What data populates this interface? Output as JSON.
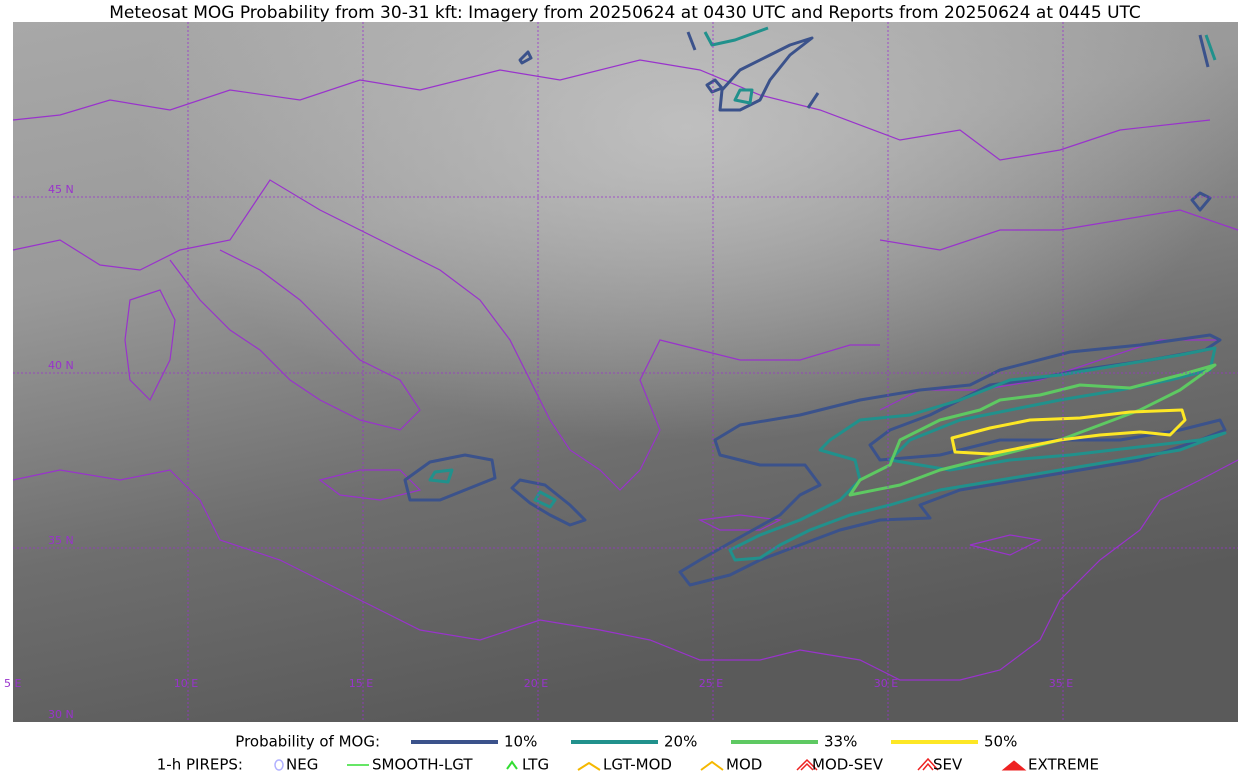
{
  "title": "Meteosat MOG Probability from 30-31 kft: Imagery from 20250624 at 0430 UTC and Reports from 20250624 at 0445 UTC",
  "map": {
    "lat_labels": [
      "45 N",
      "40 N",
      "35 N",
      "30 N"
    ],
    "lon_labels": [
      "5 E",
      "10 E",
      "15 E",
      "20 E",
      "25 E",
      "30 E",
      "35 E"
    ]
  },
  "legend": {
    "mog_label": "Probability of MOG:",
    "mog_levels": [
      "10%",
      "20%",
      "33%",
      "50%"
    ],
    "pireps_label": "1-h PIREPS:",
    "pireps": [
      "NEG",
      "SMOOTH-LGT",
      "LTG",
      "LGT-MOD",
      "MOD",
      "MOD-SEV",
      "SEV",
      "EXTREME"
    ]
  }
}
